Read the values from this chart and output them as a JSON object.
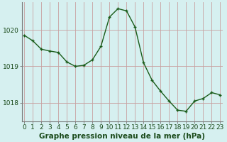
{
  "x": [
    0,
    1,
    2,
    3,
    4,
    5,
    6,
    7,
    8,
    9,
    10,
    11,
    12,
    13,
    14,
    15,
    16,
    17,
    18,
    19,
    20,
    21,
    22,
    23
  ],
  "y": [
    1019.85,
    1019.7,
    1019.47,
    1019.42,
    1019.38,
    1019.12,
    1019.0,
    1019.03,
    1019.18,
    1019.55,
    1020.35,
    1020.58,
    1020.52,
    1020.08,
    1019.1,
    1018.62,
    1018.32,
    1018.05,
    1017.8,
    1017.77,
    1018.05,
    1018.12,
    1018.28,
    1018.22
  ],
  "ylim": [
    1017.5,
    1020.75
  ],
  "yticks": [
    1018,
    1019,
    1020
  ],
  "xticks": [
    0,
    1,
    2,
    3,
    4,
    5,
    6,
    7,
    8,
    9,
    10,
    11,
    12,
    13,
    14,
    15,
    16,
    17,
    18,
    19,
    20,
    21,
    22,
    23
  ],
  "line_color": "#1a5c1a",
  "marker_color": "#1a5c1a",
  "bg_color": "#d6f0f0",
  "grid_color": "#c8a0a0",
  "spine_color": "#777777",
  "xlabel": "Graphe pression niveau de la mer (hPa)",
  "xlabel_fontsize": 7.5,
  "tick_fontsize": 6.5,
  "ytick_fontsize": 6.5
}
